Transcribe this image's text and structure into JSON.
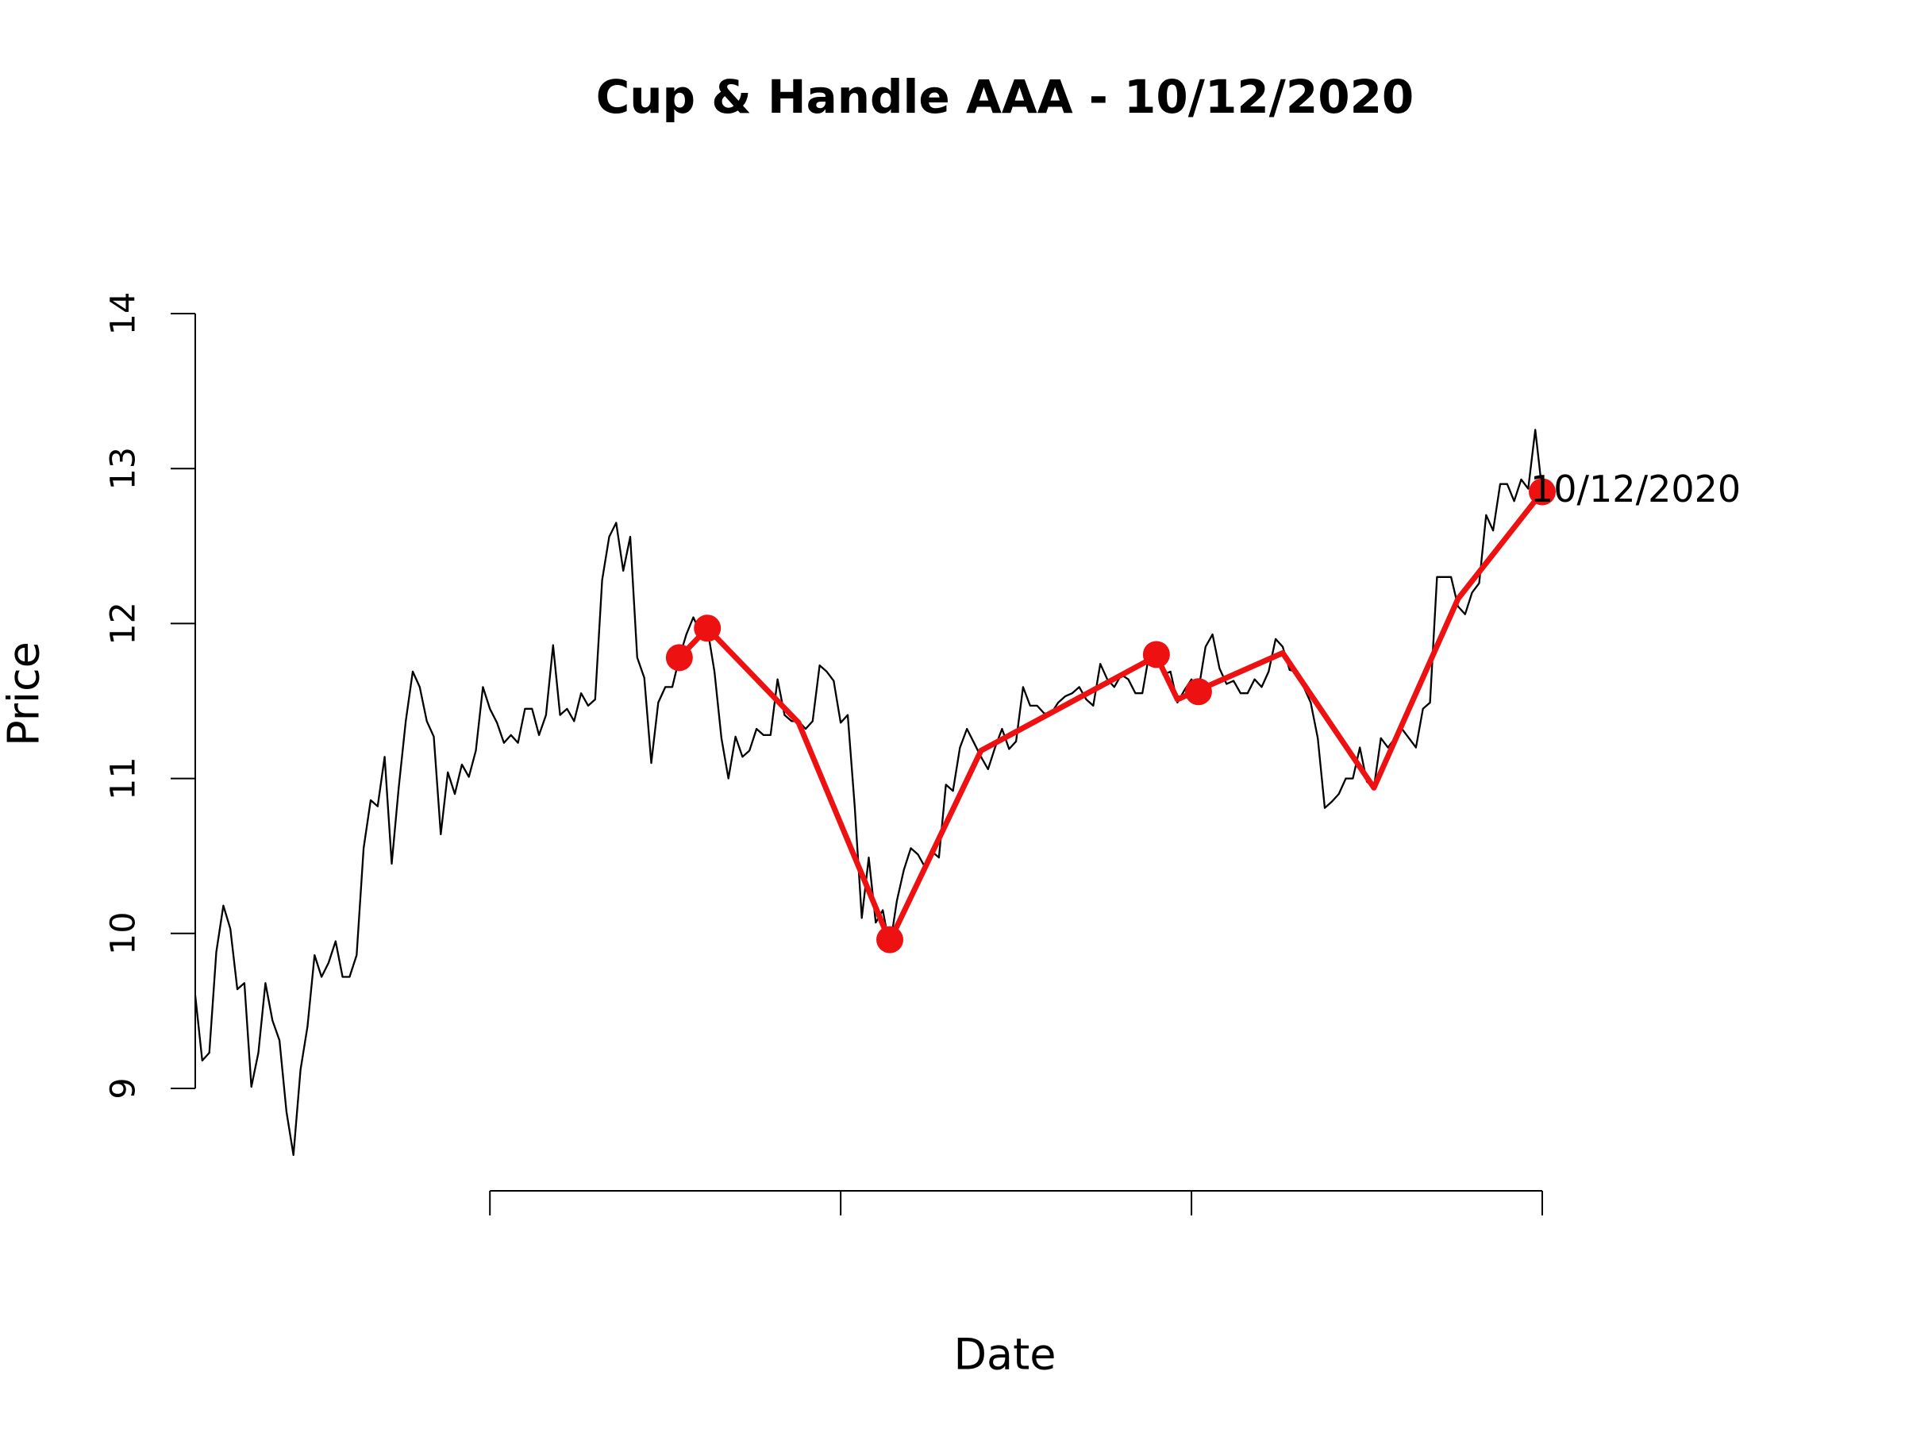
{
  "chart_data": {
    "type": "line",
    "title": "Cup & Handle AAA - 10/12/2020",
    "x_label": "Date",
    "y_label": "Price",
    "xlim": [
      0,
      192
    ],
    "xticks": [
      42,
      92,
      142,
      192
    ],
    "ylim": [
      9,
      14
    ],
    "yticks": [
      9,
      10,
      11,
      12,
      13,
      14
    ],
    "series": [
      {
        "color": "#000000",
        "style": "line",
        "values": [
          9.6,
          9.18,
          9.23,
          9.88,
          10.18,
          10.03,
          9.64,
          9.68,
          9.01,
          9.23,
          9.68,
          9.44,
          9.31,
          8.85,
          8.57,
          9.12,
          9.4,
          9.86,
          9.72,
          9.81,
          9.95,
          9.72,
          9.72,
          9.86,
          10.55,
          10.86,
          10.82,
          11.14,
          10.45,
          10.94,
          11.37,
          11.69,
          11.59,
          11.37,
          11.27,
          10.64,
          11.04,
          10.9,
          11.09,
          11.01,
          11.18,
          11.59,
          11.45,
          11.36,
          11.23,
          11.28,
          11.23,
          11.45,
          11.45,
          11.28,
          11.41,
          11.86,
          11.41,
          11.45,
          11.37,
          11.55,
          11.47,
          11.51,
          12.28,
          12.56,
          12.65,
          12.34,
          12.56,
          11.78,
          11.65,
          11.1,
          11.49,
          11.59,
          11.59,
          11.78,
          11.93,
          12.04,
          11.94,
          11.97,
          11.69,
          11.26,
          11.0,
          11.27,
          11.14,
          11.18,
          11.32,
          11.28,
          11.28,
          11.64,
          11.41,
          11.37,
          11.37,
          11.32,
          11.37,
          11.73,
          11.69,
          11.63,
          11.36,
          11.41,
          10.82,
          10.1,
          10.49,
          10.07,
          10.15,
          9.91,
          10.21,
          10.41,
          10.55,
          10.51,
          10.43,
          10.53,
          10.49,
          10.96,
          10.92,
          11.2,
          11.32,
          11.23,
          11.14,
          11.06,
          11.2,
          11.32,
          11.19,
          11.24,
          11.59,
          11.47,
          11.47,
          11.42,
          11.42,
          11.49,
          11.53,
          11.55,
          11.59,
          11.51,
          11.47,
          11.74,
          11.64,
          11.59,
          11.67,
          11.64,
          11.55,
          11.55,
          11.81,
          11.79,
          11.67,
          11.69,
          11.49,
          11.57,
          11.64,
          11.57,
          11.85,
          11.93,
          11.71,
          11.61,
          11.63,
          11.55,
          11.55,
          11.64,
          11.59,
          11.69,
          11.9,
          11.85,
          11.7,
          11.69,
          11.59,
          11.49,
          11.26,
          10.81,
          10.85,
          10.9,
          11.0,
          11.0,
          11.2,
          10.98,
          10.94,
          11.26,
          11.2,
          11.26,
          11.32,
          11.26,
          11.2,
          11.45,
          11.49,
          12.3,
          12.3,
          12.3,
          12.11,
          12.06,
          12.2,
          12.26,
          12.7,
          12.6,
          12.9,
          12.9,
          12.79,
          12.93,
          12.87,
          13.25,
          12.85
        ]
      },
      {
        "color": "#ee1111",
        "style": "line",
        "x": [
          69,
          73,
          86,
          99,
          112,
          137,
          140,
          143,
          155,
          168,
          180,
          192
        ],
        "values": [
          11.78,
          11.97,
          11.36,
          9.95,
          11.18,
          11.79,
          11.51,
          11.57,
          11.81,
          10.94,
          12.16,
          12.85
        ]
      },
      {
        "color": "#ee1111",
        "style": "points",
        "x": [
          69,
          73,
          99,
          137,
          143,
          192
        ],
        "values": [
          11.78,
          11.97,
          9.96,
          11.8,
          11.56,
          12.85
        ]
      }
    ],
    "annotations": [
      {
        "text": "10/12/2020",
        "x": 192,
        "y": 12.85
      }
    ]
  }
}
